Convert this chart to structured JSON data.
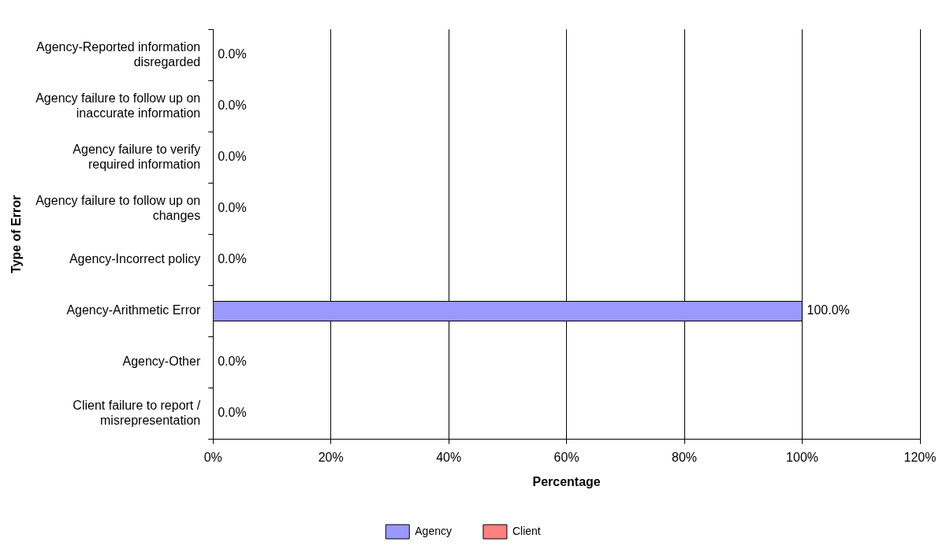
{
  "chart_data": {
    "type": "bar",
    "orientation": "horizontal",
    "xlabel": "Percentage",
    "ylabel": "Type of Error",
    "categories": [
      "Agency-Reported information disregarded",
      "Agency failure to follow up on inaccurate information",
      "Agency failure to verify required information",
      "Agency failure to follow up on changes",
      "Agency-Incorrect policy",
      "Agency-Arithmetic Error",
      "Agency-Other",
      "Client failure to report / misrepresentation"
    ],
    "series": [
      {
        "name": "Agency",
        "color": "#9999ff",
        "values": [
          0,
          0,
          0,
          0,
          0,
          100,
          0,
          0
        ],
        "value_labels": [
          "0.0%",
          "0.0%",
          "0.0%",
          "0.0%",
          "0.0%",
          "100.0%",
          "0.0%",
          "0.0%"
        ]
      },
      {
        "name": "Client",
        "color": "#ff8080",
        "values": [
          null,
          null,
          null,
          null,
          null,
          null,
          null,
          null
        ]
      }
    ],
    "xlim": [
      0,
      120
    ],
    "xticks": [
      {
        "value": 0,
        "label": "0%"
      },
      {
        "value": 20,
        "label": "20%"
      },
      {
        "value": 40,
        "label": "40%"
      },
      {
        "value": 60,
        "label": "60%"
      },
      {
        "value": 80,
        "label": "80%"
      },
      {
        "value": 100,
        "label": "100%"
      },
      {
        "value": 120,
        "label": "120%"
      }
    ],
    "grid": "x",
    "legend": "bottom"
  }
}
